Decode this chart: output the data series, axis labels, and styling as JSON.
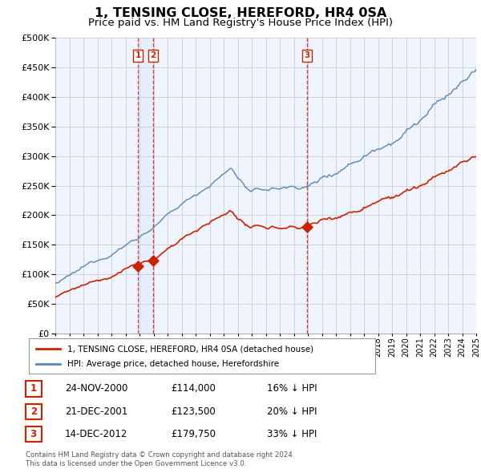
{
  "title": "1, TENSING CLOSE, HEREFORD, HR4 0SA",
  "subtitle": "Price paid vs. HM Land Registry's House Price Index (HPI)",
  "title_fontsize": 11.5,
  "subtitle_fontsize": 9.5,
  "sale_labels": [
    "1",
    "2",
    "3"
  ],
  "legend_line1": "1, TENSING CLOSE, HEREFORD, HR4 0SA (detached house)",
  "legend_line2": "HPI: Average price, detached house, Herefordshire",
  "table_rows": [
    {
      "label": "1",
      "date": "24-NOV-2000",
      "price": "£114,000",
      "hpi": "16% ↓ HPI"
    },
    {
      "label": "2",
      "date": "21-DEC-2001",
      "price": "£123,500",
      "hpi": "20% ↓ HPI"
    },
    {
      "label": "3",
      "date": "14-DEC-2012",
      "price": "£179,750",
      "hpi": "33% ↓ HPI"
    }
  ],
  "footer1": "Contains HM Land Registry data © Crown copyright and database right 2024.",
  "footer2": "This data is licensed under the Open Government Licence v3.0.",
  "red_color": "#cc2200",
  "blue_color": "#5588bb",
  "blue_fill": "#ddeeff",
  "vline_color": "#dd3333",
  "grid_color": "#cccccc",
  "bg_color": "#ffffff",
  "chart_bg": "#f0f4ff",
  "ylim": [
    0,
    500000
  ],
  "yticks": [
    0,
    50000,
    100000,
    150000,
    200000,
    250000,
    300000,
    350000,
    400000,
    450000,
    500000
  ],
  "sale_vline_x": [
    2000.9,
    2001.97,
    2012.95
  ],
  "sale_prices": [
    114000,
    123500,
    179750
  ],
  "xlim_start": 1995,
  "xlim_end": 2025
}
